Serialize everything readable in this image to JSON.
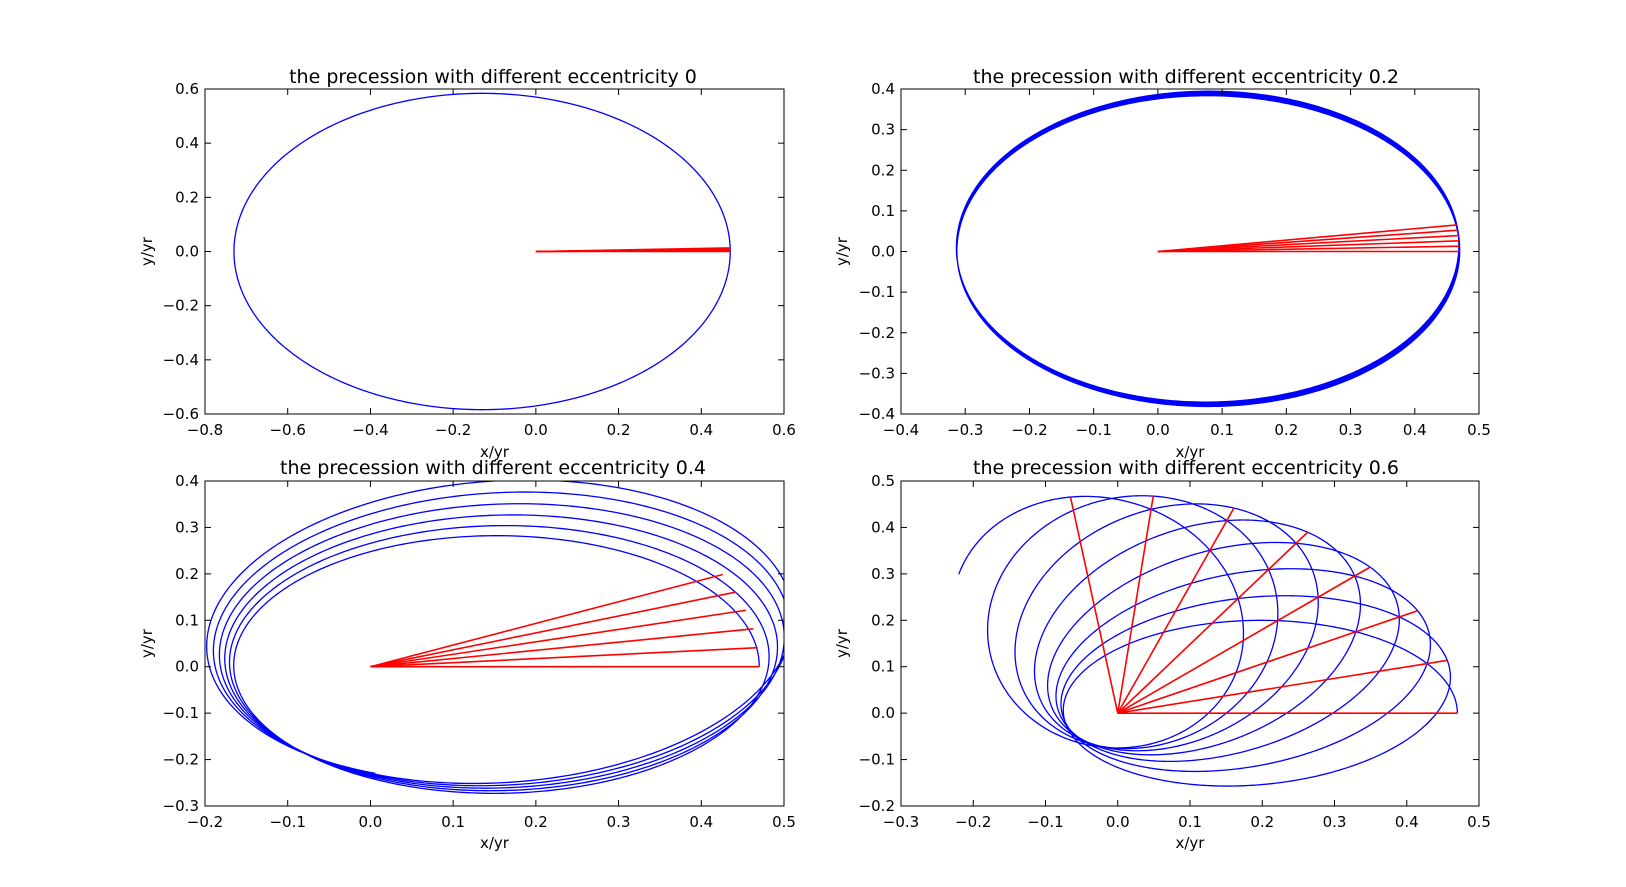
{
  "chart_data": [
    {
      "type": "line",
      "title": "the precession with different eccentricity 0",
      "xlabel": "x/yr",
      "ylabel": "y/yr",
      "xlim": [
        -0.8,
        0.6
      ],
      "ylim": [
        -0.6,
        0.6
      ],
      "xticks": [
        "−0.8",
        "−0.6",
        "−0.4",
        "−0.2",
        "0.0",
        "0.2",
        "0.4",
        "0.6"
      ],
      "yticks": [
        "−0.6",
        "−0.4",
        "−0.2",
        "0.0",
        "0.2",
        "0.4",
        "0.6"
      ],
      "grid": false,
      "orbit": {
        "color": "#0000ff",
        "n_orbits": 1,
        "perihelion": 0.47,
        "aphelion": 0.73,
        "semi_minor": 0.584,
        "growth_per_orbit": 0.0,
        "precession_deg_per_orbit": 0.0,
        "tail_end_deg": null
      },
      "axes_lines": {
        "color": "#ff0000",
        "from": [
          0.0,
          0.0
        ],
        "angles_deg": [
          0.0,
          0.4,
          0.8,
          1.2,
          1.6
        ],
        "length": 0.47
      }
    },
    {
      "type": "line",
      "title": "the precession with different eccentricity 0.2",
      "xlabel": "x/yr",
      "ylabel": "y/yr",
      "xlim": [
        -0.4,
        0.5
      ],
      "ylim": [
        -0.4,
        0.4
      ],
      "xticks": [
        "−0.4",
        "−0.3",
        "−0.2",
        "−0.1",
        "0.0",
        "0.1",
        "0.2",
        "0.3",
        "0.4",
        "0.5"
      ],
      "yticks": [
        "−0.4",
        "−0.3",
        "−0.2",
        "−0.1",
        "0.0",
        "0.1",
        "0.2",
        "0.3",
        "0.4"
      ],
      "grid": false,
      "orbit": {
        "color": "#0000ff",
        "n_orbits": 6,
        "perihelion": 0.47,
        "aphelion": 0.313,
        "semi_minor": 0.383,
        "growth_per_orbit": 0.0,
        "precession_deg_per_orbit": 1.6,
        "tail_end_deg": null
      },
      "axes_lines": {
        "color": "#ff0000",
        "from": [
          0.0,
          0.0
        ],
        "angles_deg": [
          0.0,
          1.6,
          3.2,
          4.8,
          6.4,
          8.0
        ],
        "length": 0.47
      }
    },
    {
      "type": "line",
      "title": "the precession with different eccentricity 0.4",
      "xlabel": "x/yr",
      "ylabel": "y/yr",
      "xlim": [
        -0.2,
        0.5
      ],
      "ylim": [
        -0.3,
        0.4
      ],
      "xticks": [
        "−0.2",
        "−0.1",
        "0.0",
        "0.1",
        "0.2",
        "0.3",
        "0.4",
        "0.5"
      ],
      "yticks": [
        "−0.3",
        "−0.2",
        "−0.1",
        "0.0",
        "0.1",
        "0.2",
        "0.3",
        "0.4"
      ],
      "grid": false,
      "orbit": {
        "color": "#0000ff",
        "n_orbits": 6,
        "perihelion": 0.47,
        "aphelion": 0.163,
        "semi_minor": 0.277,
        "growth_per_orbit": 0.013,
        "precession_deg_per_orbit": 5.0,
        "tail_end_deg": 220
      },
      "axes_lines": {
        "color": "#ff0000",
        "from": [
          0.0,
          0.0
        ],
        "angles_deg": [
          0.0,
          5.0,
          10.0,
          15.0,
          20.0,
          25.0
        ],
        "length": 0.47
      }
    },
    {
      "type": "line",
      "title": "the precession with different eccentricity 0.6",
      "xlabel": "x/yr",
      "ylabel": "y/yr",
      "xlim": [
        -0.3,
        0.5
      ],
      "ylim": [
        -0.2,
        0.5
      ],
      "xticks": [
        "−0.3",
        "−0.2",
        "−0.1",
        "0.0",
        "0.1",
        "0.2",
        "0.3",
        "0.4",
        "0.5"
      ],
      "yticks": [
        "−0.2",
        "−0.1",
        "0.0",
        "0.1",
        "0.2",
        "0.3",
        "0.4",
        "0.5"
      ],
      "grid": false,
      "orbit": {
        "color": "#0000ff",
        "n_orbits": 8,
        "perihelion": 0.47,
        "aphelion": 0.075,
        "semi_minor": 0.188,
        "growth_per_orbit": 0.0,
        "precession_deg_per_orbit": 14.0,
        "tail_end_deg": 60
      },
      "axes_lines": {
        "color": "#ff0000",
        "from": [
          0.0,
          0.0
        ],
        "angles_deg": [
          0,
          14,
          28,
          42,
          56,
          70,
          84,
          98
        ],
        "length": 0.47
      }
    }
  ]
}
